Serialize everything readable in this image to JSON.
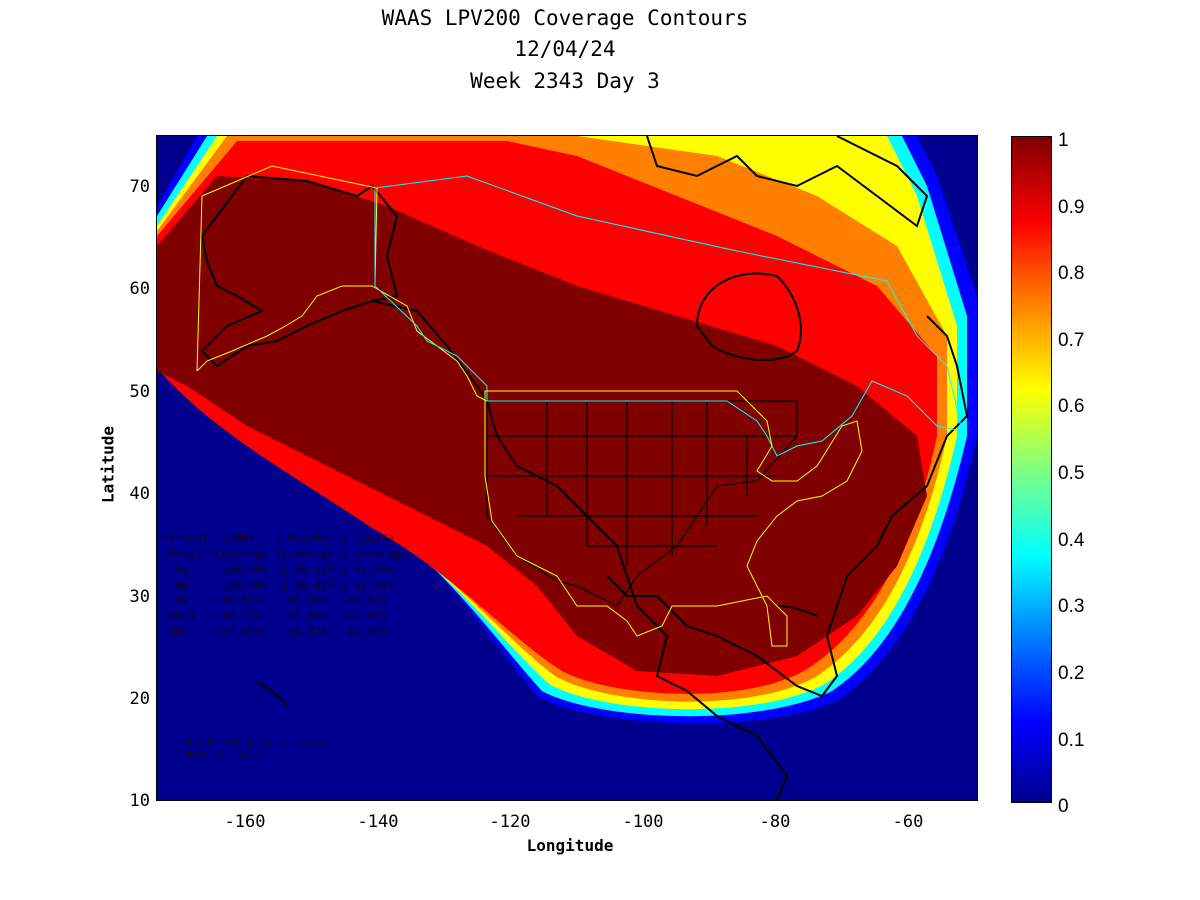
{
  "title": {
    "line1": "WAAS LPV200 Coverage Contours",
    "line2": "12/04/24",
    "line3": "Week 2343 Day 3"
  },
  "axes": {
    "xlabel": "Longitude",
    "ylabel": "Latitude",
    "xticks": [
      "-160",
      "-140",
      "-120",
      "-100",
      "-80",
      "-60"
    ],
    "yticks": [
      "70",
      "60",
      "50",
      "40",
      "30",
      "20",
      "10"
    ],
    "xlim": [
      -174,
      -50
    ],
    "ylim": [
      10,
      75
    ]
  },
  "colorbar": {
    "ticks": [
      "1",
      "0.9",
      "0.8",
      "0.7",
      "0.6",
      "0.5",
      "0.4",
      "0.3",
      "0.2",
      "0.1",
      "0"
    ],
    "colormap": "jet"
  },
  "colors": {
    "coverage_high": "#800000",
    "coverage_low": "#00008f",
    "service_boundary": "#ffff00",
    "canada_boundary": "#00ffff"
  },
  "stats_table": {
    "header1": "Percent| CONUS   | Alaska  | Canada",
    "header2": " Avail.|Coverage |Coverage | Coverage",
    "rows": [
      "  95   | 100.00%  | 99.32% | 63.39%",
      "  98   | 100.00%  | 98.42% | 53.92%",
      "  99   | 99.88%  | 96.91% | 49.83%",
      " 99.9  | 98.16%  | 93.58% | 41.97%",
      " 100   | 97.60%  | 91.47% | 41.59%"
    ]
  },
  "credit": {
    "line1": "W.J.H. FAA Technical Center",
    "line2": "WAAS Test Team"
  }
}
